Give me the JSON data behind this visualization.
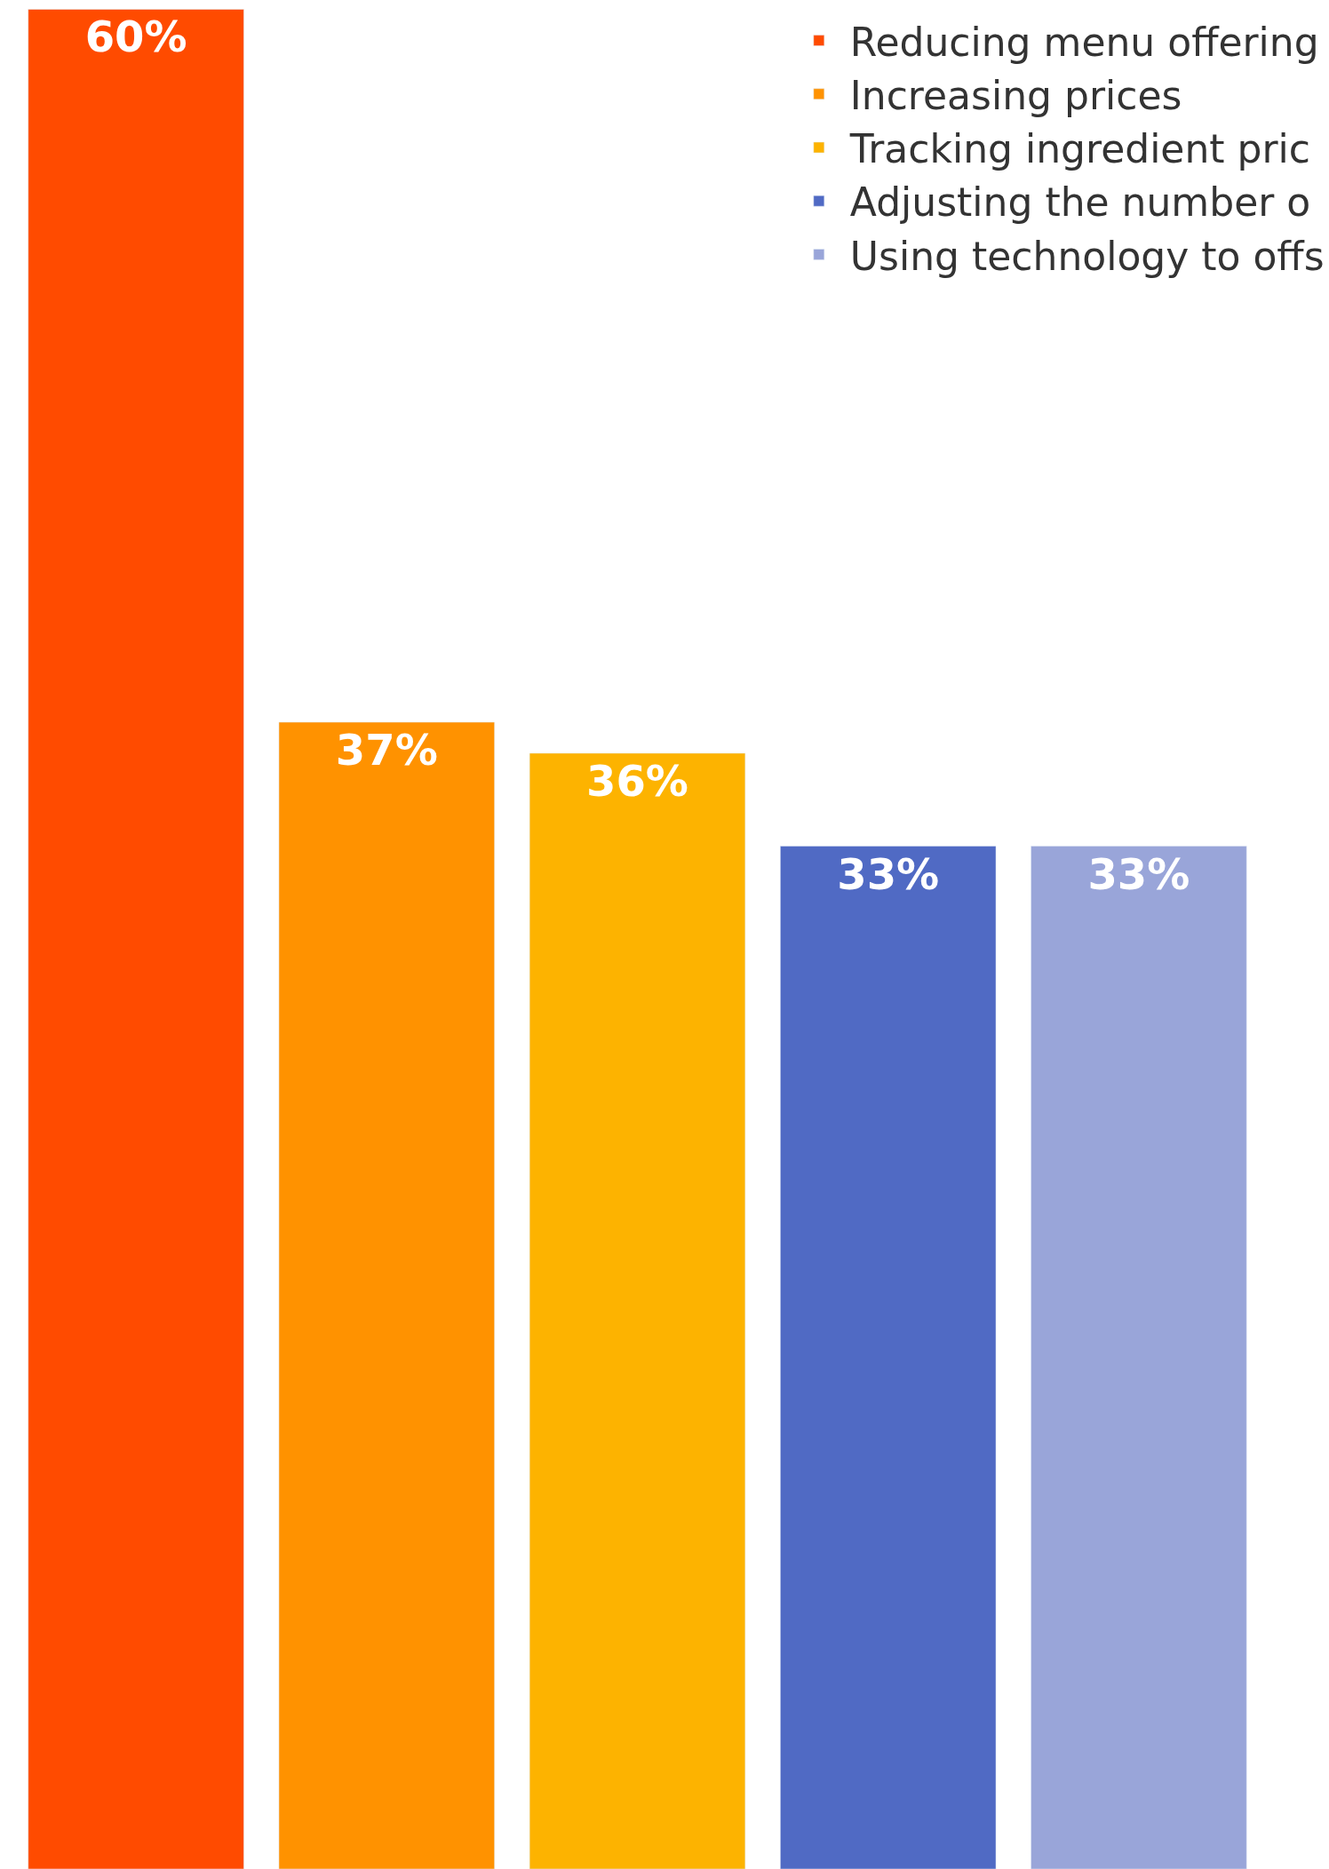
{
  "chart_data": {
    "type": "bar",
    "categories": [
      null,
      null,
      null,
      null,
      null
    ],
    "stacked": true,
    "series": [
      {
        "name": "Reducing menu offering",
        "color": "#ff4b00",
        "values": [
          60,
          null,
          null,
          null,
          null
        ],
        "value_labels": [
          "60%",
          null,
          null,
          null,
          null
        ]
      },
      {
        "name": "Increasing prices",
        "color": "#ff9200",
        "values": [
          null,
          37,
          null,
          null,
          null
        ],
        "value_labels": [
          null,
          "37%",
          null,
          null,
          null
        ]
      },
      {
        "name": "Tracking ingredient pric",
        "color": "#fdb300",
        "values": [
          null,
          null,
          36,
          null,
          null
        ],
        "value_labels": [
          null,
          null,
          "36%",
          null,
          null
        ]
      },
      {
        "name": "Adjusting the number o",
        "color": "#506ac4",
        "values": [
          null,
          null,
          null,
          33,
          null
        ],
        "value_labels": [
          null,
          null,
          null,
          "33%",
          null
        ]
      },
      {
        "name": "Using technology to offs",
        "color": "#99a5d9",
        "values": [
          null,
          null,
          null,
          null,
          33
        ],
        "value_labels": [
          null,
          null,
          null,
          null,
          "33%"
        ]
      }
    ],
    "ylim": [
      0,
      60.3
    ],
    "tick_labels": false,
    "legend": "top right"
  }
}
